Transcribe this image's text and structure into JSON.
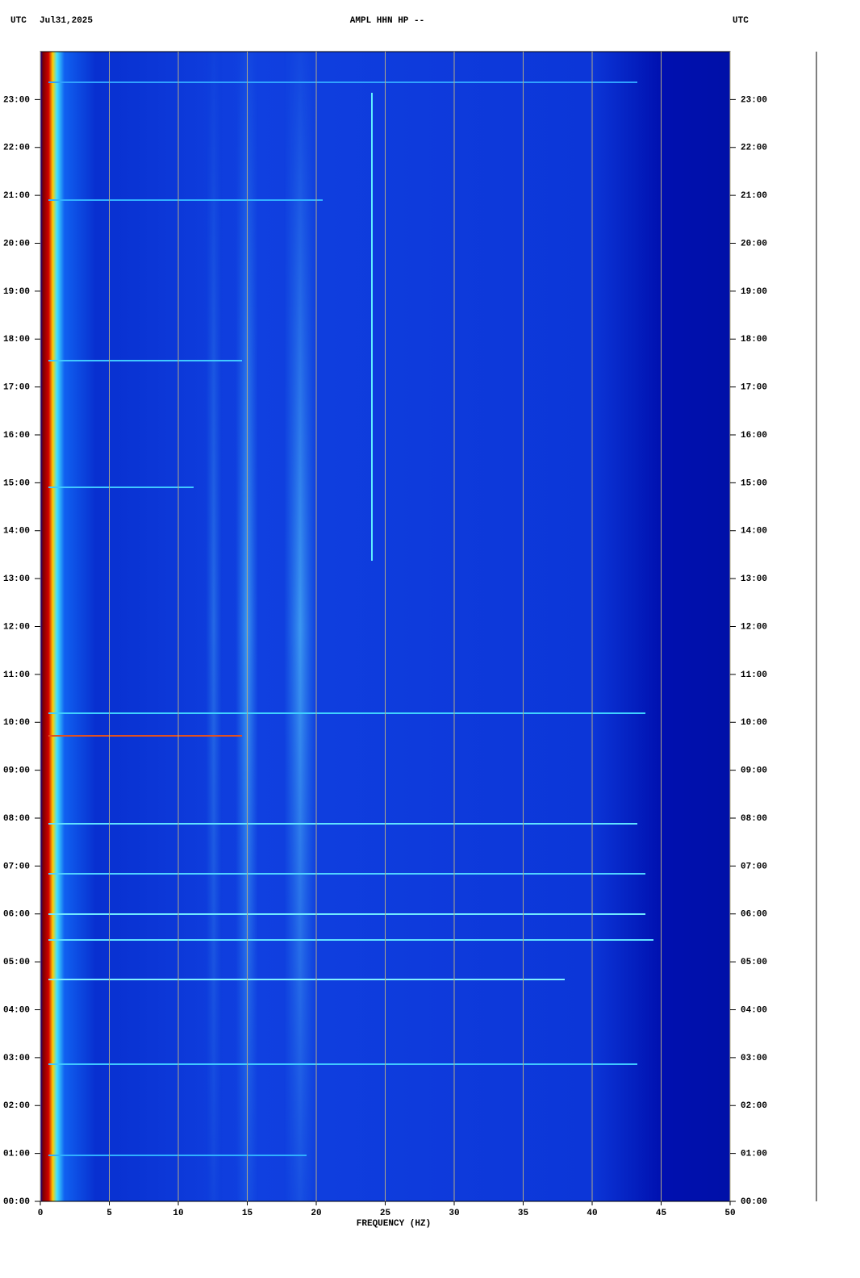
{
  "chart_data": {
    "type": "spectrogram",
    "timezone": "UTC",
    "date": "Jul31,2025",
    "title": "AMPL HHN HP --",
    "xlabel": "FREQUENCY (HZ)",
    "xlim": [
      0,
      50
    ],
    "xticks": [
      0,
      5,
      10,
      15,
      20,
      25,
      30,
      35,
      40,
      45,
      50
    ],
    "ylim": [
      0,
      24
    ],
    "yticks": [
      {
        "value": 0,
        "label": "00:00"
      },
      {
        "value": 1,
        "label": "01:00"
      },
      {
        "value": 2,
        "label": "02:00"
      },
      {
        "value": 3,
        "label": "03:00"
      },
      {
        "value": 4,
        "label": "04:00"
      },
      {
        "value": 5,
        "label": "05:00"
      },
      {
        "value": 6,
        "label": "06:00"
      },
      {
        "value": 7,
        "label": "07:00"
      },
      {
        "value": 8,
        "label": "08:00"
      },
      {
        "value": 9,
        "label": "09:00"
      },
      {
        "value": 10,
        "label": "10:00"
      },
      {
        "value": 11,
        "label": "11:00"
      },
      {
        "value": 12,
        "label": "12:00"
      },
      {
        "value": 13,
        "label": "13:00"
      },
      {
        "value": 14,
        "label": "14:00"
      },
      {
        "value": 15,
        "label": "15:00"
      },
      {
        "value": 16,
        "label": "16:00"
      },
      {
        "value": 17,
        "label": "17:00"
      },
      {
        "value": 18,
        "label": "18:00"
      },
      {
        "value": 19,
        "label": "19:00"
      },
      {
        "value": 20,
        "label": "20:00"
      },
      {
        "value": 21,
        "label": "21:00"
      },
      {
        "value": 22,
        "label": "22:00"
      },
      {
        "value": 23,
        "label": "23:00"
      }
    ],
    "grid": true
  }
}
